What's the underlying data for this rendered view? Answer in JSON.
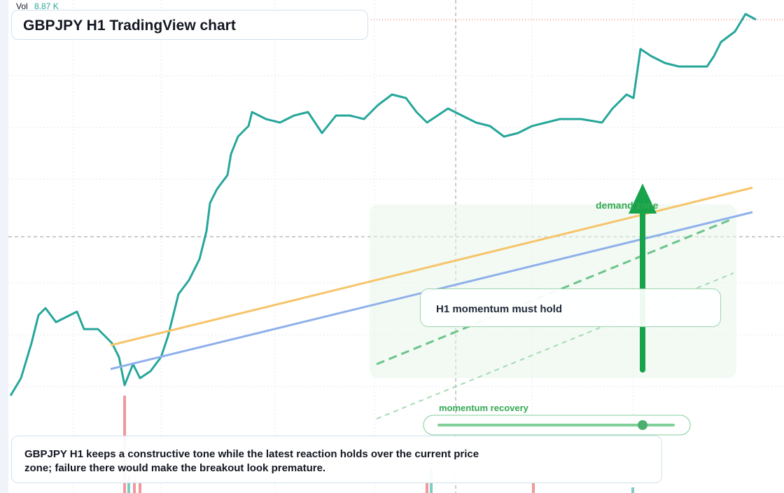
{
  "header": {
    "vol_label": "Vol",
    "vol_value": "8.87 K",
    "title": "GBPJPY H1 TradingView chart"
  },
  "annotations": {
    "zone": "demand zone",
    "callout": "H1 momentum must hold",
    "slider_label": "momentum recovery"
  },
  "note": "GBPJPY H1 keeps a constructive tone while the latest reaction holds over the current price zone; failure there would make the breakout look premature."
}
